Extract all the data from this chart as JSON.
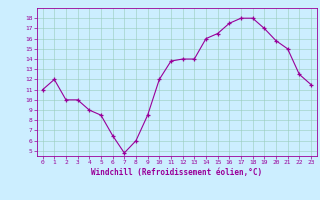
{
  "x": [
    0,
    1,
    2,
    3,
    4,
    5,
    6,
    7,
    8,
    9,
    10,
    11,
    12,
    13,
    14,
    15,
    16,
    17,
    18,
    19,
    20,
    21,
    22,
    23
  ],
  "y": [
    11,
    12,
    10,
    10,
    9,
    8.5,
    6.5,
    4.8,
    6,
    8.5,
    12,
    13.8,
    14,
    14,
    16,
    16.5,
    17.5,
    18,
    18,
    17,
    15.8,
    15,
    12.5,
    11.5
  ],
  "line_color": "#990099",
  "marker": "+",
  "bg_color": "#cceeff",
  "grid_color": "#99ccbb",
  "ylabel_ticks": [
    5,
    6,
    7,
    8,
    9,
    10,
    11,
    12,
    13,
    14,
    15,
    16,
    17,
    18
  ],
  "xlabel": "Windchill (Refroidissement éolien,°C)",
  "ylim": [
    4.5,
    19.0
  ],
  "xlim": [
    -0.5,
    23.5
  ]
}
